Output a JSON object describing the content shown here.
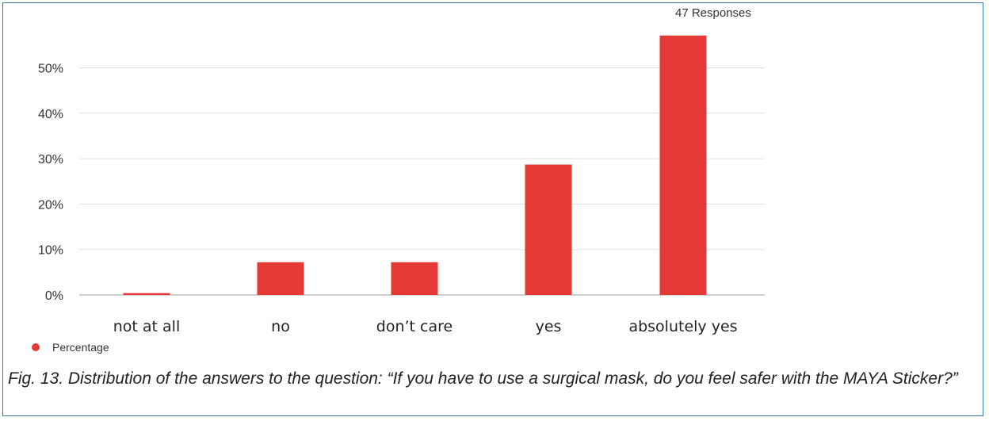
{
  "chart_data": {
    "type": "bar",
    "categories": [
      "not at all",
      "no",
      "don’t care",
      "yes",
      "absolutely yes"
    ],
    "series": [
      {
        "name": "Percentage",
        "values": [
          0.4,
          7.2,
          7.2,
          28.7,
          57.1
        ]
      }
    ],
    "ylim": [
      0,
      60
    ],
    "yticks": [
      "0%",
      "10%",
      "20%",
      "30%",
      "40%",
      "50%"
    ],
    "grid": true,
    "legend_position": "bottom-left",
    "annotation": "47 Responses"
  },
  "colors": {
    "bar": "#e53935",
    "grid": "#e0e0e0",
    "border": "#3b72b0"
  },
  "caption": "Fig. 13. Distribution of the answers to the question: “If you have to use a surgical mask, do you feel safer with the MAYA Sticker?”"
}
